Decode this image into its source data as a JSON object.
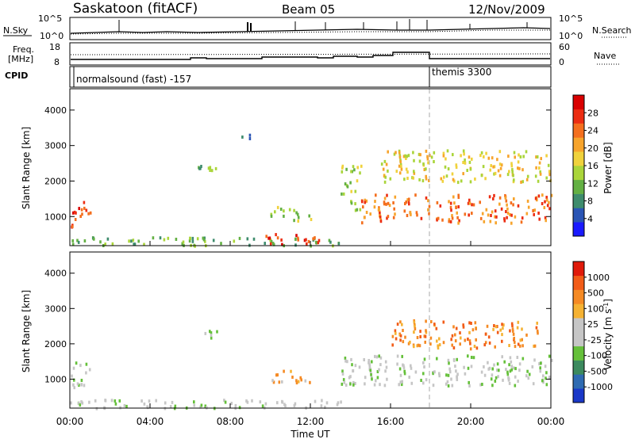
{
  "header": {
    "station": "Saskatoon (fitACF)",
    "beam": "Beam 05",
    "date": "12/Nov/2009"
  },
  "panels": {
    "nsky": {
      "left_label": "N.Sky",
      "right_label": "N.Search",
      "left_ticks": [
        "10^5",
        "10^0"
      ],
      "right_ticks": [
        "10^5",
        "10^0"
      ]
    },
    "freq": {
      "left_label_1": "Freq.",
      "left_label_2": "[MHz]",
      "right_label": "Nave",
      "left_ticks": [
        "18",
        "8"
      ],
      "right_ticks": [
        "60",
        "0"
      ]
    },
    "cpid": {
      "label": "CPID",
      "mode_1": "normalsound (fast) -157",
      "mode_2": "themis 3300"
    }
  },
  "colorbars": {
    "power": {
      "label": "Power [dB]",
      "ticks": [
        "28",
        "24",
        "20",
        "16",
        "12",
        "8",
        "4"
      ],
      "colors": [
        "#1a1aff",
        "#2a55b5",
        "#3e8c6d",
        "#63b043",
        "#aad53a",
        "#f0d23c",
        "#f7a42c",
        "#f46f1e",
        "#ec2d12",
        "#d90000"
      ]
    },
    "velocity": {
      "label": "Velocity [m s",
      "label_sup": "-1",
      "label_close": "]",
      "ticks": [
        "1000",
        "500",
        "100",
        "25",
        "-25",
        "-100",
        "-500",
        "-1000"
      ],
      "colors": [
        "#1a38c8",
        "#2f6bb2",
        "#3c8a5e",
        "#65c03a",
        "#c6c6c6",
        "#c6c6c6",
        "#f5b233",
        "#f58a24",
        "#f25c18",
        "#e01a0a"
      ]
    }
  },
  "chart_data": {
    "type": "heatmap",
    "xlabel": "Time UT",
    "ylabel": "Slant Range [km]",
    "x_ticks": [
      "00:00",
      "04:00",
      "08:00",
      "12:00",
      "16:00",
      "20:00",
      "00:00"
    ],
    "y_ticks": [
      "1000",
      "2000",
      "3000",
      "4000"
    ],
    "xlim_hours": [
      0,
      24
    ],
    "ylim_km": [
      180,
      4600
    ],
    "mode_change_hour": 18,
    "power_regions": [
      {
        "t0": 0.0,
        "t1": 1.0,
        "r0": 700,
        "r1": 1500,
        "level": 8
      },
      {
        "t0": 0.0,
        "t1": 13.5,
        "r0": 200,
        "r1": 450,
        "level": 3
      },
      {
        "t0": 9.5,
        "t1": 12.5,
        "r0": 250,
        "r1": 550,
        "level": 8
      },
      {
        "t0": 10.0,
        "t1": 12.0,
        "r0": 900,
        "r1": 1300,
        "level": 4
      },
      {
        "t0": 6.3,
        "t1": 7.7,
        "r0": 2200,
        "r1": 2500,
        "level": 3
      },
      {
        "t0": 14.5,
        "t1": 24.0,
        "r0": 850,
        "r1": 1650,
        "level": 7
      },
      {
        "t0": 15.5,
        "t1": 24.0,
        "r0": 2000,
        "r1": 2900,
        "level": 5
      },
      {
        "t0": 13.5,
        "t1": 14.5,
        "r0": 1200,
        "r1": 2500,
        "level": 4
      },
      {
        "t0": 8.5,
        "t1": 9.0,
        "r0": 3200,
        "r1": 3500,
        "level": 1
      }
    ],
    "velocity_regions": [
      {
        "t0": 0.0,
        "t1": 1.0,
        "r0": 700,
        "r1": 1500,
        "level": 4
      },
      {
        "t0": 0.0,
        "t1": 13.5,
        "r0": 200,
        "r1": 450,
        "level": 4
      },
      {
        "t0": 6.3,
        "t1": 7.7,
        "r0": 2200,
        "r1": 2400,
        "level": 4
      },
      {
        "t0": 13.5,
        "t1": 24.0,
        "r0": 850,
        "r1": 1700,
        "level": 4
      },
      {
        "t0": 16.0,
        "t1": 23.5,
        "r0": 1900,
        "r1": 2700,
        "level": 7
      },
      {
        "t0": 10.0,
        "t1": 12.0,
        "r0": 900,
        "r1": 1300,
        "level": 6
      }
    ]
  }
}
